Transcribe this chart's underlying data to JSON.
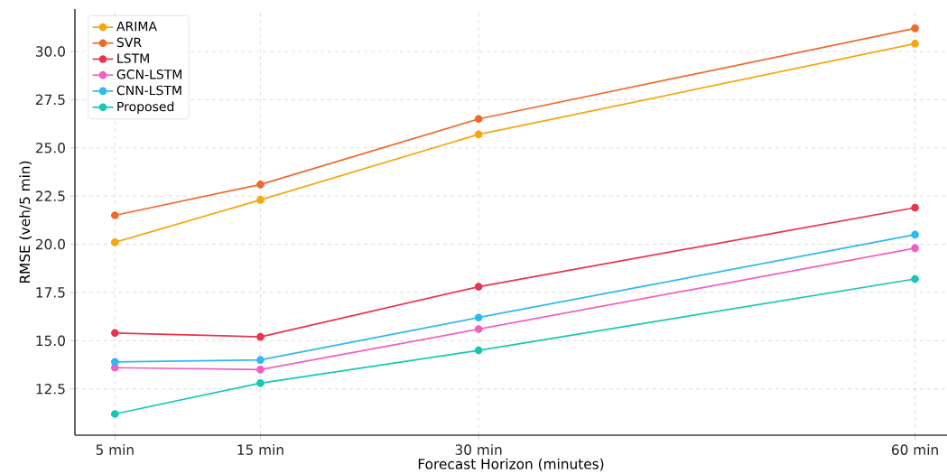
{
  "chart_data": {
    "type": "line",
    "xlabel": "Forecast Horizon (minutes)",
    "ylabel": "RMSE (veh/5 min)",
    "x": [
      5,
      15,
      30,
      60
    ],
    "series": [
      {
        "name": "ARIMA",
        "color": "#f5a70f",
        "values": [
          20.1,
          22.3,
          25.7,
          30.4
        ]
      },
      {
        "name": "SVR",
        "color": "#ee6a2a",
        "values": [
          21.5,
          23.1,
          26.5,
          31.2
        ]
      },
      {
        "name": "LSTM",
        "color": "#e8354f",
        "values": [
          15.4,
          15.2,
          17.8,
          21.9
        ]
      },
      {
        "name": "GCN-LSTM",
        "color": "#f060c0",
        "values": [
          13.6,
          13.5,
          15.6,
          19.8
        ]
      },
      {
        "name": "CNN-LSTM",
        "color": "#30b8f0",
        "values": [
          13.9,
          14.0,
          16.2,
          20.5
        ]
      },
      {
        "name": "Proposed",
        "color": "#17c7b5",
        "values": [
          11.2,
          12.8,
          14.5,
          18.2
        ]
      }
    ],
    "xlim": [
      2.25,
      62.2
    ],
    "ylim": [
      10.1,
      32.2
    ],
    "xticks": [
      {
        "value": 5,
        "label": "5 min"
      },
      {
        "value": 15,
        "label": "15 min"
      },
      {
        "value": 30,
        "label": "30 min"
      },
      {
        "value": 60,
        "label": "60 min"
      }
    ],
    "yticks": [
      {
        "value": 12.5,
        "label": "12.5"
      },
      {
        "value": 15,
        "label": "15.0"
      },
      {
        "value": 17.5,
        "label": "17.5"
      },
      {
        "value": 20,
        "label": "20.0"
      },
      {
        "value": 22.5,
        "label": "22.5"
      },
      {
        "value": 25,
        "label": "25.0"
      },
      {
        "value": 27.5,
        "label": "27.5"
      },
      {
        "value": 30,
        "label": "30.0"
      }
    ],
    "grid": true,
    "legend": "top left",
    "marker": "circle",
    "line_style": "solid"
  }
}
